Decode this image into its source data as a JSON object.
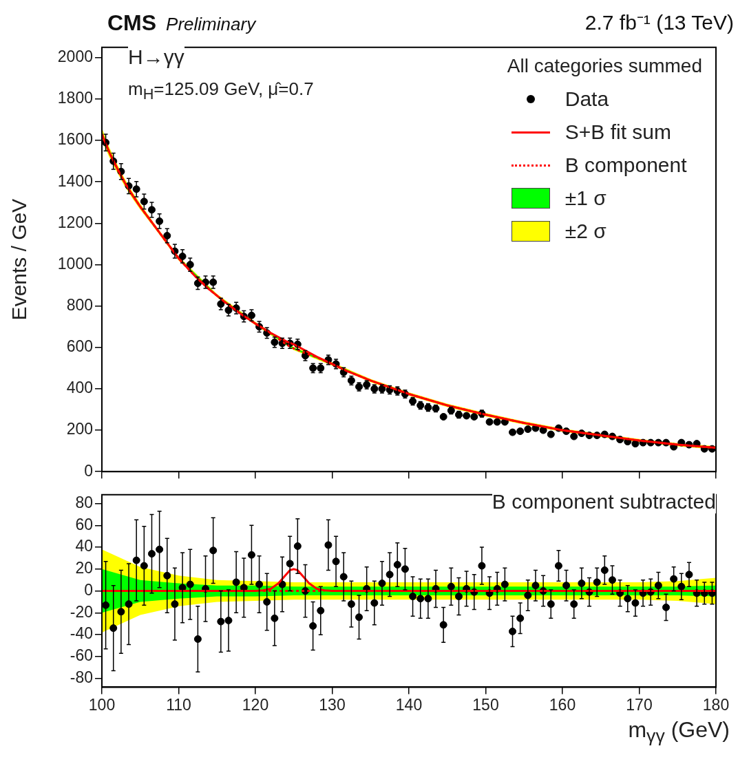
{
  "chart_data": [
    {
      "type": "scatter",
      "title": "CMS",
      "subtitle": "Preliminary",
      "ylabel": "Events / GeV",
      "legend_title": "All categories summed",
      "legend": "top right",
      "tick_labels": "y",
      "annotations": [
        "2.7 fb⁻¹ (13 TeV)",
        "H→γγ",
        "m$_{H}$=125.09 GeV, μ̂=0.7"
      ],
      "xlim": [
        100,
        180
      ],
      "xticks": [
        100,
        110,
        120,
        130,
        140,
        150,
        160,
        170,
        180
      ],
      "ylim": [
        0,
        2050
      ],
      "yticks": [
        0,
        200,
        400,
        600,
        800,
        1000,
        1200,
        1400,
        1600,
        1800,
        2000
      ],
      "series": [
        {
          "name": "Data",
          "type": "scatter",
          "marker": "circle",
          "color": "#000000",
          "x": [
            100.5,
            101.5,
            102.5,
            103.5,
            104.5,
            105.5,
            106.5,
            107.5,
            108.5,
            109.5,
            110.5,
            111.5,
            112.5,
            113.5,
            114.5,
            115.5,
            116.5,
            117.5,
            118.5,
            119.5,
            120.5,
            121.5,
            122.5,
            123.5,
            124.5,
            125.5,
            126.5,
            127.5,
            128.5,
            129.5,
            130.5,
            131.5,
            132.5,
            133.5,
            134.5,
            135.5,
            136.5,
            137.5,
            138.5,
            139.5,
            140.5,
            141.5,
            142.5,
            143.5,
            144.5,
            145.5,
            146.5,
            147.5,
            148.5,
            149.5,
            150.5,
            151.5,
            152.5,
            153.5,
            154.5,
            155.5,
            156.5,
            157.5,
            158.5,
            159.5,
            160.5,
            161.5,
            162.5,
            163.5,
            164.5,
            165.5,
            166.5,
            167.5,
            168.5,
            169.5,
            170.5,
            171.5,
            172.5,
            173.5,
            174.5,
            175.5,
            176.5,
            177.5,
            178.5,
            179.5
          ],
          "values": [
            1590,
            1500,
            1450,
            1380,
            1365,
            1305,
            1265,
            1210,
            1140,
            1065,
            1040,
            1000,
            910,
            915,
            915,
            810,
            780,
            790,
            750,
            755,
            700,
            670,
            625,
            620,
            620,
            615,
            560,
            500,
            500,
            540,
            520,
            480,
            440,
            410,
            420,
            400,
            400,
            395,
            390,
            375,
            340,
            320,
            310,
            305,
            265,
            295,
            275,
            270,
            265,
            280,
            240,
            240,
            240,
            190,
            195,
            205,
            210,
            200,
            180,
            210,
            195,
            170,
            185,
            175,
            175,
            180,
            170,
            155,
            145,
            135,
            140,
            140,
            140,
            140,
            120,
            140,
            130,
            135,
            110,
            110
          ],
          "errors": [
            40,
            39,
            38,
            37,
            37,
            36,
            36,
            35,
            34,
            33,
            32,
            32,
            30,
            30,
            30,
            28,
            28,
            28,
            27,
            27,
            26,
            26,
            25,
            25,
            25,
            25,
            24,
            22,
            22,
            23,
            23,
            22,
            21,
            20,
            20,
            20,
            20,
            20,
            20,
            19,
            18,
            18,
            18,
            17,
            null,
            17,
            17,
            null,
            null,
            17,
            null,
            null,
            null,
            null,
            null,
            null,
            null,
            null,
            null,
            null,
            null,
            null,
            null,
            null,
            null,
            null,
            null,
            null,
            null,
            null,
            null,
            null,
            null,
            null,
            null,
            null,
            null,
            null,
            null,
            null
          ]
        },
        {
          "name": "S+B fit sum",
          "type": "line",
          "line_style": "solid",
          "color": "#ff0000",
          "x": [
            100,
            101,
            102,
            103,
            104,
            105,
            106,
            107,
            108,
            109,
            110,
            112,
            114,
            116,
            118,
            120,
            122,
            124,
            125,
            126,
            128,
            130,
            132,
            135,
            140,
            145,
            150,
            155,
            160,
            165,
            170,
            175,
            180
          ],
          "values": [
            1630,
            1540,
            1465,
            1395,
            1335,
            1280,
            1230,
            1180,
            1130,
            1080,
            1030,
            950,
            880,
            820,
            765,
            715,
            670,
            630,
            615,
            595,
            555,
            520,
            485,
            440,
            375,
            320,
            275,
            235,
            200,
            175,
            150,
            130,
            115
          ]
        },
        {
          "name": "B component",
          "type": "line",
          "line_style": "dotted",
          "color": "#ff0000",
          "x": [
            100,
            101,
            102,
            103,
            104,
            105,
            106,
            107,
            108,
            109,
            110,
            112,
            114,
            116,
            118,
            120,
            122,
            124,
            125,
            126,
            128,
            130,
            132,
            135,
            140,
            145,
            150,
            155,
            160,
            165,
            170,
            175,
            180
          ],
          "values": [
            1630,
            1540,
            1465,
            1395,
            1335,
            1280,
            1230,
            1180,
            1130,
            1080,
            1030,
            950,
            880,
            820,
            765,
            715,
            668,
            615,
            595,
            580,
            552,
            520,
            485,
            440,
            375,
            320,
            275,
            235,
            200,
            175,
            150,
            130,
            115
          ]
        },
        {
          "name": "±1 σ",
          "type": "line",
          "color": "#00ff00",
          "x": [
            100,
            101,
            102,
            103,
            104,
            105,
            106,
            107,
            108,
            109,
            110,
            115,
            120,
            125,
            130,
            135,
            140,
            145,
            150,
            155,
            160,
            165,
            170,
            175,
            180
          ],
          "values": [
            null,
            null,
            null,
            null,
            null,
            null,
            null,
            null,
            null,
            null,
            null,
            null,
            null,
            null,
            null,
            null,
            null,
            null,
            null,
            null,
            null,
            null,
            null,
            null,
            null
          ],
          "lower": [
            1615,
            1528,
            1455,
            1386,
            1327,
            1273,
            1224,
            1175,
            1125,
            1075,
            1025,
            846,
            711,
            591,
            516,
            436,
            371,
            316,
            271,
            231,
            196,
            171,
            146,
            126,
            111
          ],
          "upper": [
            1645,
            1552,
            1475,
            1404,
            1343,
            1287,
            1236,
            1185,
            1135,
            1085,
            1035,
            854,
            719,
            599,
            524,
            444,
            379,
            324,
            279,
            239,
            204,
            179,
            154,
            134,
            119
          ]
        },
        {
          "name": "±2 σ",
          "type": "line",
          "color": "#ffff00",
          "x": [
            100,
            101,
            102,
            103,
            104,
            105,
            106,
            107,
            108,
            109,
            110,
            115,
            120,
            125,
            130,
            135,
            140,
            145,
            150,
            155,
            160,
            165,
            170,
            175,
            180
          ],
          "values": [
            null,
            null,
            null,
            null,
            null,
            null,
            null,
            null,
            null,
            null,
            null,
            null,
            null,
            null,
            null,
            null,
            null,
            null,
            null,
            null,
            null,
            null,
            null,
            null,
            null
          ],
          "lower": [
            1600,
            1516,
            1445,
            1377,
            1319,
            1266,
            1218,
            1170,
            1120,
            1070,
            1020,
            842,
            707,
            587,
            512,
            432,
            367,
            312,
            267,
            227,
            192,
            167,
            142,
            122,
            107
          ],
          "upper": [
            1660,
            1564,
            1485,
            1413,
            1351,
            1294,
            1242,
            1190,
            1140,
            1090,
            1040,
            858,
            723,
            603,
            528,
            448,
            383,
            328,
            283,
            243,
            208,
            183,
            158,
            138,
            123
          ]
        }
      ]
    },
    {
      "type": "scatter",
      "xlabel": "m$_{γγ}$ (GeV)",
      "annotations": [
        "B component subtracted"
      ],
      "xlim": [
        100,
        180
      ],
      "xticks": [
        100,
        110,
        120,
        130,
        140,
        150,
        160,
        170,
        180
      ],
      "ylim": [
        -88,
        88
      ],
      "yticks": [
        -80,
        -60,
        -40,
        -20,
        0,
        20,
        40,
        60,
        80
      ],
      "series": [
        {
          "type": "scatter",
          "marker": "circle",
          "color": "#000000",
          "x": [
            100.5,
            101.5,
            102.5,
            103.5,
            104.5,
            105.5,
            106.5,
            107.5,
            108.5,
            109.5,
            110.5,
            111.5,
            112.5,
            113.5,
            114.5,
            115.5,
            116.5,
            117.5,
            118.5,
            119.5,
            120.5,
            121.5,
            122.5,
            123.5,
            124.5,
            125.5,
            126.5,
            127.5,
            128.5,
            129.5,
            130.5,
            131.5,
            132.5,
            133.5,
            134.5,
            135.5,
            136.5,
            137.5,
            138.5,
            139.5,
            140.5,
            141.5,
            142.5,
            143.5,
            144.5,
            145.5,
            146.5,
            147.5,
            148.5,
            149.5,
            150.5,
            151.5,
            152.5,
            153.5,
            154.5,
            155.5,
            156.5,
            157.5,
            158.5,
            159.5,
            160.5,
            161.5,
            162.5,
            163.5,
            164.5,
            165.5,
            166.5,
            167.5,
            168.5,
            169.5,
            170.5,
            171.5,
            172.5,
            173.5,
            174.5,
            175.5,
            176.5,
            177.5,
            178.5,
            179.5
          ],
          "values": [
            -13,
            -34,
            -19,
            -12,
            28,
            23,
            34,
            38,
            14,
            -12,
            3,
            6,
            -44,
            2,
            37,
            -28,
            -27,
            8,
            3,
            33,
            6,
            -10,
            -25,
            6,
            25,
            41,
            0,
            -32,
            -18,
            42,
            27,
            13,
            -12,
            -24,
            2,
            -11,
            7,
            15,
            24,
            20,
            -5,
            -7,
            -7,
            2,
            -31,
            4,
            -5,
            2,
            -1,
            23,
            -2,
            2,
            6,
            -37,
            -25,
            -4,
            5,
            0,
            -12,
            23,
            5,
            -12,
            7,
            -1,
            8,
            19,
            10,
            -2,
            -7,
            -11,
            -2,
            -1,
            5,
            -15,
            11,
            4,
            15,
            -2,
            -2,
            -2
          ],
          "errors": [
            40,
            39,
            38,
            37,
            37,
            36,
            36,
            35,
            34,
            33,
            32,
            32,
            30,
            30,
            30,
            28,
            28,
            28,
            27,
            27,
            26,
            26,
            25,
            25,
            25,
            25,
            24,
            22,
            22,
            23,
            23,
            22,
            21,
            20,
            20,
            20,
            20,
            20,
            20,
            19,
            18,
            18,
            18,
            17,
            16,
            17,
            17,
            16,
            16,
            17,
            15,
            15,
            15,
            14,
            14,
            14,
            14,
            14,
            13,
            14,
            14,
            13,
            14,
            13,
            13,
            13,
            13,
            12,
            12,
            12,
            12,
            12,
            12,
            12,
            11,
            12,
            11,
            12,
            10,
            10
          ]
        },
        {
          "type": "line",
          "line_style": "solid",
          "color": "#ff0000",
          "x": [
            100,
            120,
            121,
            122,
            123,
            124,
            124.5,
            125,
            125.5,
            126,
            127,
            128,
            129,
            130,
            180
          ],
          "values": [
            0,
            0,
            0.5,
            2,
            7,
            15,
            19,
            20,
            19,
            15,
            7,
            2,
            0.5,
            0,
            0
          ]
        },
        {
          "type": "line",
          "line_style": "dotted",
          "color": "#ff0000",
          "x": [
            121,
            129
          ],
          "values": [
            0,
            0
          ]
        },
        {
          "type": "line",
          "color": "#00ff00",
          "x": [
            100,
            105,
            110,
            115,
            120,
            125,
            130,
            135,
            140,
            145,
            150,
            155,
            160,
            165,
            170,
            175,
            180
          ],
          "values": [
            null,
            null,
            null,
            null,
            null,
            null,
            null,
            null,
            null,
            null,
            null,
            null,
            null,
            null,
            null,
            null,
            null
          ],
          "lower": [
            -20,
            -10,
            -7,
            -5,
            -5,
            -4,
            -4,
            -4,
            -4,
            -4,
            -4,
            -4,
            -4,
            -4,
            -4,
            -4,
            -5
          ],
          "upper": [
            20,
            10,
            7,
            5,
            5,
            4,
            4,
            4,
            4,
            4,
            4,
            4,
            4,
            4,
            4,
            4,
            5
          ]
        },
        {
          "type": "line",
          "color": "#ffff00",
          "x": [
            100,
            105,
            110,
            115,
            120,
            125,
            130,
            135,
            140,
            145,
            150,
            155,
            160,
            165,
            170,
            175,
            180
          ],
          "values": [
            null,
            null,
            null,
            null,
            null,
            null,
            null,
            null,
            null,
            null,
            null,
            null,
            null,
            null,
            null,
            null,
            null
          ],
          "lower": [
            -38,
            -22,
            -14,
            -10,
            -9,
            -8,
            -8,
            -8,
            -8,
            -8,
            -8,
            -8,
            -8,
            -8,
            -8,
            -9,
            -12
          ],
          "upper": [
            38,
            22,
            14,
            10,
            9,
            8,
            8,
            8,
            8,
            8,
            8,
            8,
            8,
            8,
            8,
            9,
            12
          ]
        }
      ]
    }
  ]
}
